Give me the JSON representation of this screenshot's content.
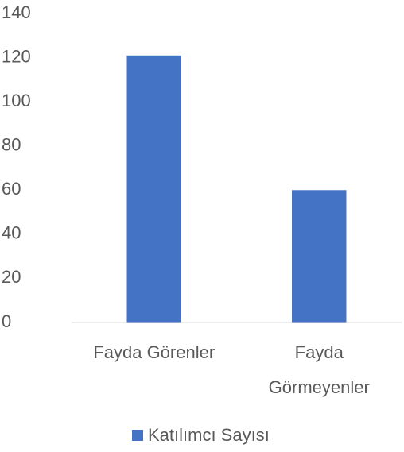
{
  "chart_data": {
    "type": "bar",
    "categories": [
      "Fayda Görenler",
      "Fayda Görmeyenler"
    ],
    "series": [
      {
        "name": "Katılımcı Sayısı",
        "color": "#4472c4",
        "values": [
          121,
          60
        ]
      }
    ],
    "ylim": [
      0,
      140
    ],
    "yticks": [
      0,
      20,
      40,
      60,
      80,
      100,
      120,
      140
    ],
    "grid": false,
    "legend": "bottom"
  }
}
